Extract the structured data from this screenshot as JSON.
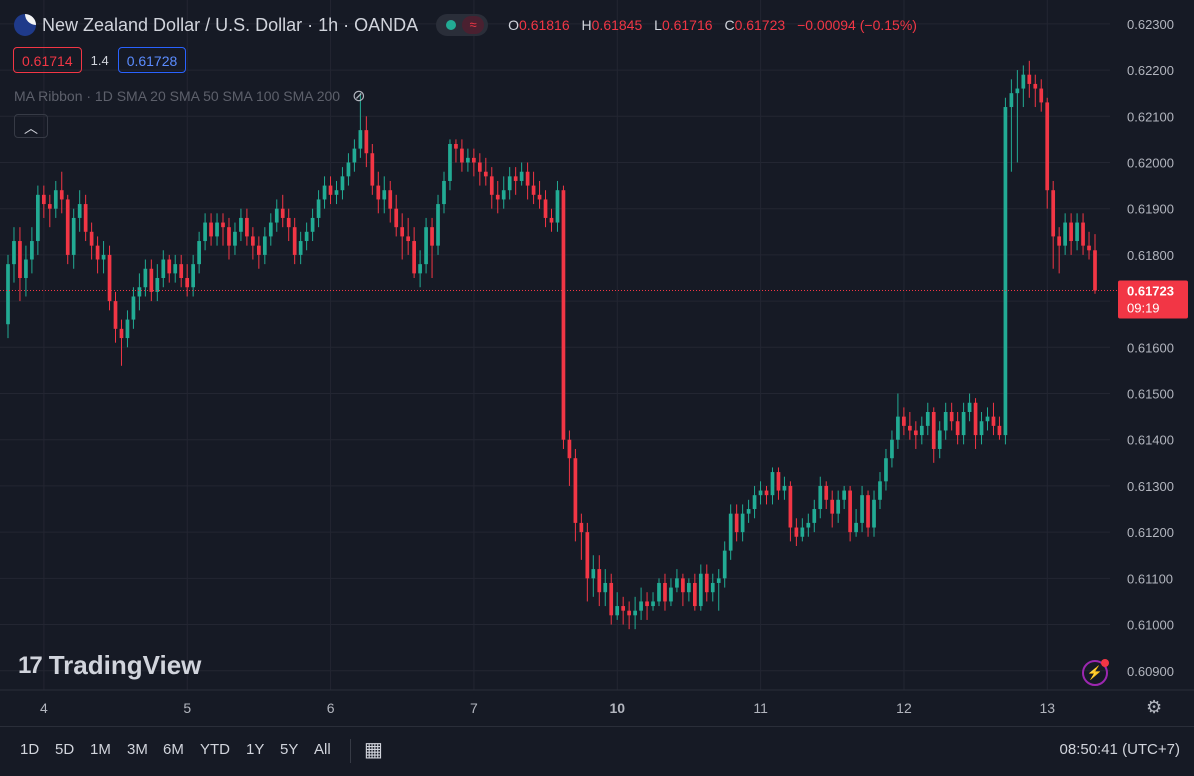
{
  "header": {
    "title": "New Zealand Dollar / U.S. Dollar · 1h · OANDA",
    "ohlc": {
      "o_label": "O",
      "o": "0.61816",
      "h_label": "H",
      "h": "0.61845",
      "l_label": "L",
      "l": "0.61716",
      "c_label": "C",
      "c": "0.61723",
      "change": "−0.00094 (−0.15%)"
    },
    "wave_icon": "≈"
  },
  "quote": {
    "bid": "0.61714",
    "spread": "1.4",
    "ask": "0.61728"
  },
  "indicator": {
    "label": "MA Ribbon · 1D SMA 20 SMA 50 SMA 100 SMA 200"
  },
  "logo": {
    "text": "TradingView"
  },
  "bottom": {
    "ranges": [
      "1D",
      "5D",
      "1M",
      "3M",
      "6M",
      "YTD",
      "1Y",
      "5Y",
      "All"
    ],
    "clock": "08:50:41 (UTC+7)"
  },
  "colors": {
    "up": "#22ab94",
    "down": "#f23645",
    "background": "#161a25",
    "grid": "#232632",
    "text": "#b2b5be"
  },
  "chart_data": {
    "type": "candlestick",
    "symbol": "NZDUSD",
    "interval": "1h",
    "ylim": [
      0.6088,
      0.6233
    ],
    "yticks": [
      "0.62300",
      "0.62200",
      "0.62100",
      "0.62000",
      "0.61900",
      "0.61800",
      "0.61700",
      "0.61600",
      "0.61500",
      "0.61400",
      "0.61300",
      "0.61200",
      "0.61100",
      "0.61000",
      "0.60900"
    ],
    "xticks": [
      {
        "label": "4",
        "bar": 3
      },
      {
        "label": "5",
        "bar": 27
      },
      {
        "label": "6",
        "bar": 51
      },
      {
        "label": "7",
        "bar": 75
      },
      {
        "label": "10",
        "bar": 99,
        "bold": true
      },
      {
        "label": "11",
        "bar": 123
      },
      {
        "label": "12",
        "bar": 147
      },
      {
        "label": "13",
        "bar": 171
      }
    ],
    "last_price": {
      "value": 0.61723,
      "label": "0.61723",
      "countdown": "09:19"
    },
    "candles": [
      [
        0.6165,
        0.6178,
        0.6162,
        0.618
      ],
      [
        0.6178,
        0.6183,
        0.6174,
        0.6186
      ],
      [
        0.6183,
        0.6175,
        0.617,
        0.6186
      ],
      [
        0.6175,
        0.6179,
        0.6171,
        0.6182
      ],
      [
        0.6179,
        0.6183,
        0.6176,
        0.6186
      ],
      [
        0.6183,
        0.6193,
        0.618,
        0.6195
      ],
      [
        0.6193,
        0.6191,
        0.6188,
        0.6195
      ],
      [
        0.6191,
        0.619,
        0.6186,
        0.6193
      ],
      [
        0.619,
        0.6194,
        0.6188,
        0.6196
      ],
      [
        0.6194,
        0.6192,
        0.6189,
        0.6198
      ],
      [
        0.6192,
        0.618,
        0.6178,
        0.6193
      ],
      [
        0.618,
        0.6188,
        0.6177,
        0.619
      ],
      [
        0.6188,
        0.6191,
        0.6185,
        0.6194
      ],
      [
        0.6191,
        0.6185,
        0.6183,
        0.6193
      ],
      [
        0.6185,
        0.6182,
        0.6179,
        0.6187
      ],
      [
        0.6182,
        0.6179,
        0.6176,
        0.6184
      ],
      [
        0.6179,
        0.618,
        0.6176,
        0.6183
      ],
      [
        0.618,
        0.617,
        0.6168,
        0.6182
      ],
      [
        0.617,
        0.6164,
        0.6161,
        0.6172
      ],
      [
        0.6164,
        0.6162,
        0.6156,
        0.6166
      ],
      [
        0.6162,
        0.6166,
        0.616,
        0.6168
      ],
      [
        0.6166,
        0.6171,
        0.6164,
        0.6173
      ],
      [
        0.6171,
        0.6173,
        0.6168,
        0.6176
      ],
      [
        0.6173,
        0.6177,
        0.6171,
        0.6179
      ],
      [
        0.6177,
        0.6172,
        0.617,
        0.6179
      ],
      [
        0.6172,
        0.6175,
        0.617,
        0.6178
      ],
      [
        0.6175,
        0.6179,
        0.6173,
        0.6181
      ],
      [
        0.6179,
        0.6176,
        0.6174,
        0.618
      ],
      [
        0.6176,
        0.6178,
        0.6174,
        0.618
      ],
      [
        0.6178,
        0.6175,
        0.6173,
        0.618
      ],
      [
        0.6175,
        0.6173,
        0.6171,
        0.6178
      ],
      [
        0.6173,
        0.6178,
        0.6171,
        0.618
      ],
      [
        0.6178,
        0.6183,
        0.6176,
        0.6185
      ],
      [
        0.6183,
        0.6187,
        0.6181,
        0.6189
      ],
      [
        0.6187,
        0.6184,
        0.6182,
        0.6189
      ],
      [
        0.6184,
        0.6187,
        0.6182,
        0.6189
      ],
      [
        0.6187,
        0.6186,
        0.6182,
        0.6189
      ],
      [
        0.6186,
        0.6182,
        0.6179,
        0.6188
      ],
      [
        0.6182,
        0.6185,
        0.618,
        0.6187
      ],
      [
        0.6185,
        0.6188,
        0.6183,
        0.619
      ],
      [
        0.6188,
        0.6184,
        0.6182,
        0.619
      ],
      [
        0.6184,
        0.6182,
        0.6179,
        0.6186
      ],
      [
        0.6182,
        0.618,
        0.6177,
        0.6184
      ],
      [
        0.618,
        0.6184,
        0.6178,
        0.6186
      ],
      [
        0.6184,
        0.6187,
        0.6182,
        0.6189
      ],
      [
        0.6187,
        0.619,
        0.6185,
        0.6192
      ],
      [
        0.619,
        0.6188,
        0.6186,
        0.6193
      ],
      [
        0.6188,
        0.6186,
        0.6183,
        0.619
      ],
      [
        0.6186,
        0.618,
        0.6178,
        0.6188
      ],
      [
        0.618,
        0.6183,
        0.6178,
        0.6185
      ],
      [
        0.6183,
        0.6185,
        0.6181,
        0.6187
      ],
      [
        0.6185,
        0.6188,
        0.6183,
        0.619
      ],
      [
        0.6188,
        0.6192,
        0.6186,
        0.6194
      ],
      [
        0.6192,
        0.6195,
        0.619,
        0.6197
      ],
      [
        0.6195,
        0.6193,
        0.6191,
        0.6197
      ],
      [
        0.6193,
        0.6194,
        0.6191,
        0.6196
      ],
      [
        0.6194,
        0.6197,
        0.6192,
        0.6199
      ],
      [
        0.6197,
        0.62,
        0.6195,
        0.6202
      ],
      [
        0.62,
        0.6203,
        0.6198,
        0.6205
      ],
      [
        0.6203,
        0.6207,
        0.6201,
        0.6215
      ],
      [
        0.6207,
        0.6202,
        0.6199,
        0.621
      ],
      [
        0.6202,
        0.6195,
        0.6193,
        0.6204
      ],
      [
        0.6195,
        0.6192,
        0.6189,
        0.6198
      ],
      [
        0.6192,
        0.6194,
        0.6189,
        0.6197
      ],
      [
        0.6194,
        0.619,
        0.6187,
        0.6196
      ],
      [
        0.619,
        0.6186,
        0.6184,
        0.6193
      ],
      [
        0.6186,
        0.6184,
        0.6179,
        0.6189
      ],
      [
        0.6184,
        0.6183,
        0.618,
        0.6188
      ],
      [
        0.6183,
        0.6176,
        0.6175,
        0.6186
      ],
      [
        0.6176,
        0.6178,
        0.6173,
        0.6181
      ],
      [
        0.6178,
        0.6186,
        0.6176,
        0.6188
      ],
      [
        0.6186,
        0.6182,
        0.6175,
        0.6188
      ],
      [
        0.6182,
        0.6191,
        0.618,
        0.6193
      ],
      [
        0.6191,
        0.6196,
        0.6189,
        0.6198
      ],
      [
        0.6196,
        0.6204,
        0.6194,
        0.6205
      ],
      [
        0.6204,
        0.6203,
        0.62,
        0.6205
      ],
      [
        0.6203,
        0.62,
        0.6198,
        0.6205
      ],
      [
        0.62,
        0.6201,
        0.6198,
        0.6203
      ],
      [
        0.6201,
        0.62,
        0.6197,
        0.6203
      ],
      [
        0.62,
        0.6198,
        0.6195,
        0.6202
      ],
      [
        0.6198,
        0.6197,
        0.6195,
        0.6201
      ],
      [
        0.6197,
        0.6193,
        0.619,
        0.6199
      ],
      [
        0.6193,
        0.6192,
        0.6189,
        0.6196
      ],
      [
        0.6192,
        0.6194,
        0.619,
        0.6197
      ],
      [
        0.6194,
        0.6197,
        0.6192,
        0.6199
      ],
      [
        0.6197,
        0.6196,
        0.6193,
        0.6199
      ],
      [
        0.6196,
        0.6198,
        0.6195,
        0.62
      ],
      [
        0.6198,
        0.6195,
        0.6192,
        0.62
      ],
      [
        0.6195,
        0.6193,
        0.6191,
        0.6198
      ],
      [
        0.6193,
        0.6192,
        0.619,
        0.6196
      ],
      [
        0.6192,
        0.6188,
        0.6186,
        0.6194
      ],
      [
        0.6188,
        0.6187,
        0.6185,
        0.619
      ],
      [
        0.6187,
        0.6194,
        0.6185,
        0.6196
      ],
      [
        0.6194,
        0.614,
        0.6138,
        0.6195
      ],
      [
        0.614,
        0.6136,
        0.613,
        0.6142
      ],
      [
        0.6136,
        0.6122,
        0.6118,
        0.6138
      ],
      [
        0.6122,
        0.612,
        0.6114,
        0.6124
      ],
      [
        0.612,
        0.611,
        0.6105,
        0.6122
      ],
      [
        0.611,
        0.6112,
        0.6106,
        0.6115
      ],
      [
        0.6112,
        0.6107,
        0.6104,
        0.6115
      ],
      [
        0.6107,
        0.6109,
        0.6104,
        0.6112
      ],
      [
        0.6109,
        0.6102,
        0.61,
        0.6111
      ],
      [
        0.6102,
        0.6104,
        0.6101,
        0.6107
      ],
      [
        0.6104,
        0.6103,
        0.61,
        0.6106
      ],
      [
        0.6103,
        0.6102,
        0.6099,
        0.6105
      ],
      [
        0.6102,
        0.6103,
        0.6099,
        0.6106
      ],
      [
        0.6103,
        0.6105,
        0.6101,
        0.6108
      ],
      [
        0.6105,
        0.6104,
        0.6101,
        0.6107
      ],
      [
        0.6104,
        0.6105,
        0.6103,
        0.6107
      ],
      [
        0.6105,
        0.6109,
        0.6104,
        0.611
      ],
      [
        0.6109,
        0.6105,
        0.6103,
        0.6111
      ],
      [
        0.6105,
        0.6108,
        0.6104,
        0.611
      ],
      [
        0.6108,
        0.611,
        0.6107,
        0.6112
      ],
      [
        0.611,
        0.6107,
        0.6104,
        0.6111
      ],
      [
        0.6107,
        0.6109,
        0.6105,
        0.611
      ],
      [
        0.6109,
        0.6104,
        0.6103,
        0.6111
      ],
      [
        0.6104,
        0.6111,
        0.6103,
        0.6113
      ],
      [
        0.6111,
        0.6107,
        0.6105,
        0.6113
      ],
      [
        0.6107,
        0.6109,
        0.6105,
        0.6111
      ],
      [
        0.6109,
        0.611,
        0.6103,
        0.6112
      ],
      [
        0.611,
        0.6116,
        0.6108,
        0.6118
      ],
      [
        0.6116,
        0.6124,
        0.6114,
        0.6126
      ],
      [
        0.6124,
        0.612,
        0.6118,
        0.6126
      ],
      [
        0.612,
        0.6124,
        0.6118,
        0.6126
      ],
      [
        0.6124,
        0.6125,
        0.6122,
        0.6127
      ],
      [
        0.6125,
        0.6128,
        0.6123,
        0.613
      ],
      [
        0.6128,
        0.6129,
        0.6126,
        0.6131
      ],
      [
        0.6129,
        0.6128,
        0.6126,
        0.613
      ],
      [
        0.6128,
        0.6133,
        0.6126,
        0.6134
      ],
      [
        0.6133,
        0.6129,
        0.6127,
        0.6134
      ],
      [
        0.6129,
        0.613,
        0.6127,
        0.6132
      ],
      [
        0.613,
        0.6121,
        0.6118,
        0.6131
      ],
      [
        0.6121,
        0.6119,
        0.6117,
        0.6123
      ],
      [
        0.6119,
        0.6121,
        0.6118,
        0.6123
      ],
      [
        0.6121,
        0.6122,
        0.6119,
        0.6124
      ],
      [
        0.6122,
        0.6125,
        0.612,
        0.6127
      ],
      [
        0.6125,
        0.613,
        0.6123,
        0.6132
      ],
      [
        0.613,
        0.6127,
        0.6125,
        0.6131
      ],
      [
        0.6127,
        0.6124,
        0.6121,
        0.6129
      ],
      [
        0.6124,
        0.6127,
        0.6122,
        0.6129
      ],
      [
        0.6127,
        0.6129,
        0.6125,
        0.613
      ],
      [
        0.6129,
        0.612,
        0.6118,
        0.613
      ],
      [
        0.612,
        0.6122,
        0.6119,
        0.6125
      ],
      [
        0.6122,
        0.6128,
        0.612,
        0.613
      ],
      [
        0.6128,
        0.6121,
        0.6119,
        0.6129
      ],
      [
        0.6121,
        0.6127,
        0.6119,
        0.6129
      ],
      [
        0.6127,
        0.6131,
        0.6125,
        0.6133
      ],
      [
        0.6131,
        0.6136,
        0.6129,
        0.6138
      ],
      [
        0.6136,
        0.614,
        0.6134,
        0.6142
      ],
      [
        0.614,
        0.6145,
        0.6138,
        0.615
      ],
      [
        0.6145,
        0.6143,
        0.6141,
        0.6147
      ],
      [
        0.6143,
        0.6142,
        0.614,
        0.6146
      ],
      [
        0.6142,
        0.6141,
        0.6138,
        0.6144
      ],
      [
        0.6141,
        0.6143,
        0.6139,
        0.6145
      ],
      [
        0.6143,
        0.6146,
        0.6141,
        0.6148
      ],
      [
        0.6146,
        0.6138,
        0.6135,
        0.6147
      ],
      [
        0.6138,
        0.6142,
        0.6136,
        0.6144
      ],
      [
        0.6142,
        0.6146,
        0.614,
        0.6148
      ],
      [
        0.6146,
        0.6144,
        0.6142,
        0.6148
      ],
      [
        0.6144,
        0.6141,
        0.6139,
        0.6146
      ],
      [
        0.6141,
        0.6146,
        0.6139,
        0.6148
      ],
      [
        0.6146,
        0.6148,
        0.6144,
        0.615
      ],
      [
        0.6148,
        0.6141,
        0.6138,
        0.6149
      ],
      [
        0.6141,
        0.6144,
        0.6139,
        0.6146
      ],
      [
        0.6144,
        0.6145,
        0.6142,
        0.6147
      ],
      [
        0.6145,
        0.6143,
        0.6141,
        0.6148
      ],
      [
        0.6143,
        0.6141,
        0.614,
        0.6145
      ],
      [
        0.6141,
        0.6212,
        0.6139,
        0.6214
      ],
      [
        0.6212,
        0.6215,
        0.6198,
        0.6218
      ],
      [
        0.6215,
        0.6216,
        0.62,
        0.622
      ],
      [
        0.6216,
        0.6219,
        0.6212,
        0.6221
      ],
      [
        0.6219,
        0.6217,
        0.6214,
        0.6222
      ],
      [
        0.6217,
        0.6216,
        0.6212,
        0.6219
      ],
      [
        0.6216,
        0.6213,
        0.6211,
        0.6218
      ],
      [
        0.6213,
        0.6194,
        0.619,
        0.6214
      ],
      [
        0.6194,
        0.6184,
        0.6177,
        0.6196
      ],
      [
        0.6184,
        0.6182,
        0.6176,
        0.6186
      ],
      [
        0.6182,
        0.6187,
        0.618,
        0.6189
      ],
      [
        0.6187,
        0.6183,
        0.618,
        0.6189
      ],
      [
        0.6183,
        0.6187,
        0.6181,
        0.6189
      ],
      [
        0.6187,
        0.6182,
        0.618,
        0.6189
      ],
      [
        0.6182,
        0.6181,
        0.6179,
        0.6185
      ],
      [
        0.6181,
        0.61723,
        0.61716,
        0.61845
      ]
    ]
  }
}
